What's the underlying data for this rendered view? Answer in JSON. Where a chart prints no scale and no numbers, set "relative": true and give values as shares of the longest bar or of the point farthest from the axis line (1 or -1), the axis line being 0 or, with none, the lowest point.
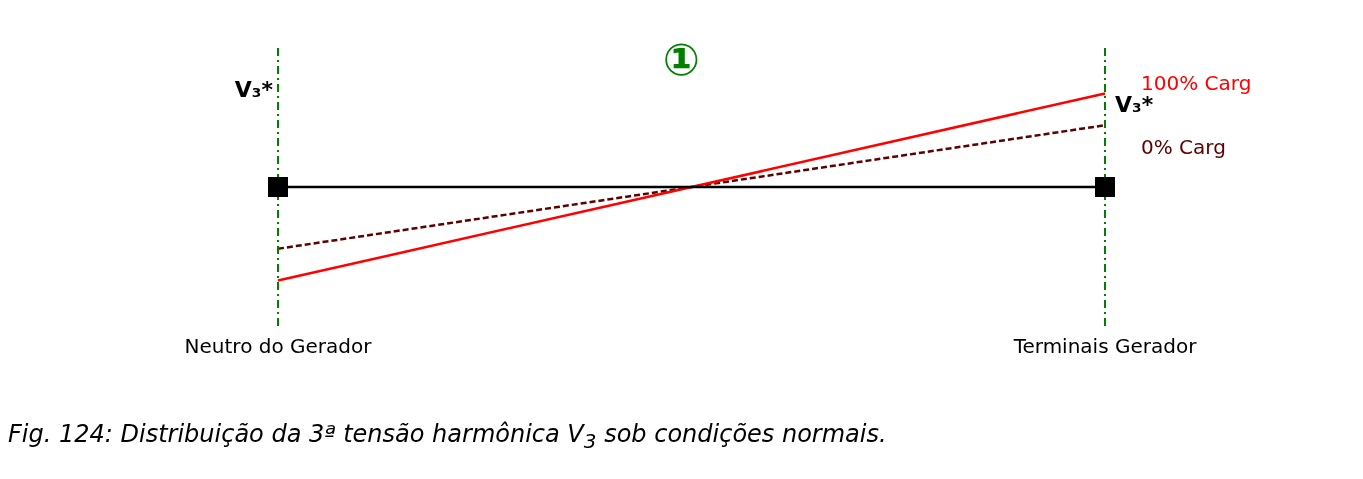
{
  "chart_data": {
    "type": "line",
    "relative": true,
    "categories": [
      "Neutro do Gerador",
      "Terminais Gerador"
    ],
    "series": [
      {
        "name": "100% Carg",
        "color": "#ff0000",
        "values": [
          0,
          1
        ],
        "line_style": "solid"
      },
      {
        "name": "0% Carg",
        "color": "#5c0000",
        "values": [
          0.17,
          0.83
        ],
        "line_style": "dashed"
      }
    ],
    "ref_lines": [
      {
        "axis": "y",
        "value": 0.5,
        "color": "#000000",
        "line_style": "solid"
      },
      {
        "axis": "x",
        "value": "Neutro do Gerador",
        "label": "V₃*",
        "color": "#008000",
        "line_style": "dashed"
      },
      {
        "axis": "x",
        "value": "Terminais Gerador",
        "label": "V₃*",
        "color": "#008000",
        "line_style": "dashed"
      }
    ],
    "annotations": [
      "①",
      "Fig. 124: Distribuição da 3ª tensão harmônica V$_{3}$ sob condições normais."
    ],
    "legend": false,
    "grid": false,
    "marker": "none"
  }
}
